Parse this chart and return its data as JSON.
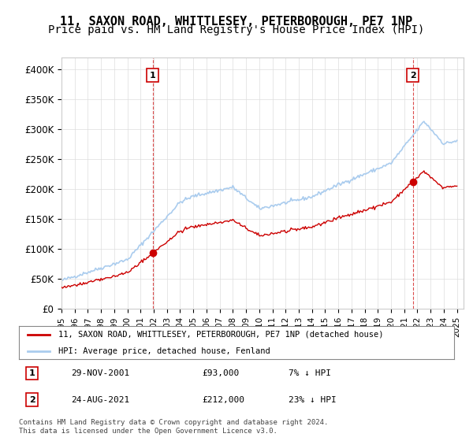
{
  "title": "11, SAXON ROAD, WHITTLESEY, PETERBOROUGH, PE7 1NP",
  "subtitle": "Price paid vs. HM Land Registry's House Price Index (HPI)",
  "ylabel_ticks": [
    "£0",
    "£50K",
    "£100K",
    "£150K",
    "£200K",
    "£250K",
    "£300K",
    "£350K",
    "£400K"
  ],
  "ytick_values": [
    0,
    50000,
    100000,
    150000,
    200000,
    250000,
    300000,
    350000,
    400000
  ],
  "ylim": [
    0,
    420000
  ],
  "xlim_start": 1995.0,
  "xlim_end": 2025.5,
  "sale1": {
    "date_num": 2001.91,
    "price": 93000,
    "label": "1",
    "date_str": "29-NOV-2001",
    "pct": "7%",
    "dir": "↓"
  },
  "sale2": {
    "date_num": 2021.65,
    "price": 212000,
    "label": "2",
    "date_str": "24-AUG-2021",
    "pct": "23%",
    "dir": "↓"
  },
  "line_property_color": "#cc0000",
  "line_hpi_color": "#aaccee",
  "legend_property": "11, SAXON ROAD, WHITTLESEY, PETERBOROUGH, PE7 1NP (detached house)",
  "legend_hpi": "HPI: Average price, detached house, Fenland",
  "annotation1_text": "1",
  "annotation2_text": "2",
  "footer1": "Contains HM Land Registry data © Crown copyright and database right 2024.",
  "footer2": "This data is licensed under the Open Government Licence v3.0.",
  "table_row1": [
    "1",
    "29-NOV-2001",
    "£93,000",
    "7% ↓ HPI"
  ],
  "table_row2": [
    "2",
    "24-AUG-2021",
    "£212,000",
    "23% ↓ HPI"
  ],
  "background_color": "#ffffff",
  "grid_color": "#dddddd",
  "title_fontsize": 11,
  "subtitle_fontsize": 10
}
